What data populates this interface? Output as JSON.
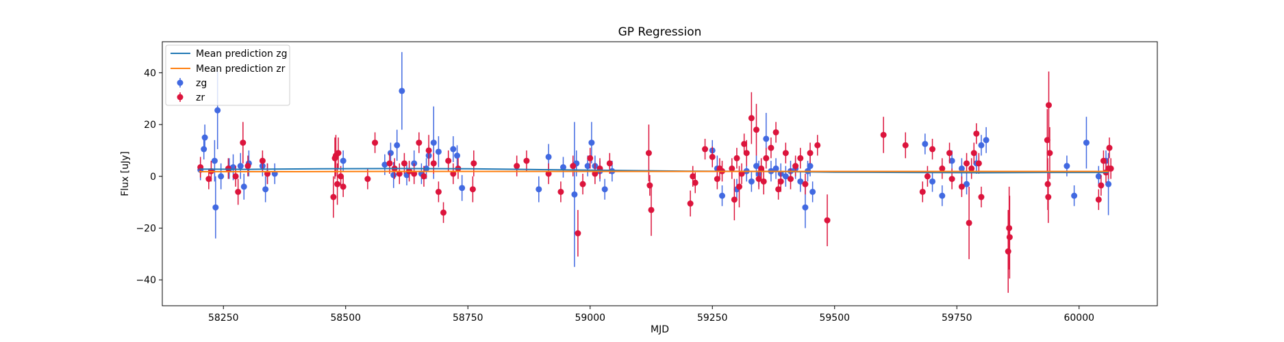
{
  "chart_data": {
    "type": "scatter",
    "title": "GP Regression",
    "xlabel": "MJD",
    "ylabel": "Flux [uJy]",
    "xlim": [
      58125,
      60160
    ],
    "ylim": [
      -50,
      52
    ],
    "xticks": [
      58250,
      58500,
      58750,
      59000,
      59250,
      59500,
      59750,
      60000
    ],
    "yticks": [
      -40,
      -20,
      0,
      20,
      40
    ],
    "grid": false,
    "legend_position": "upper-left",
    "series": [
      {
        "name": "Mean prediction zg",
        "kind": "line",
        "color": "#1f77b4",
        "x": [
          58200,
          58300,
          58450,
          58600,
          58750,
          58900,
          59050,
          59200,
          59350,
          59500,
          59650,
          59800,
          59950,
          60060
        ],
        "y": [
          2.8,
          2.7,
          2.9,
          3.0,
          2.9,
          2.6,
          2.3,
          2.0,
          1.9,
          1.6,
          1.5,
          1.4,
          1.5,
          1.5
        ]
      },
      {
        "name": "Mean prediction zr",
        "kind": "line",
        "color": "#ff7f0e",
        "x": [
          58200,
          58400,
          58600,
          58800,
          59000,
          59200,
          59400,
          59600,
          59800,
          60000,
          60060
        ],
        "y": [
          1.8,
          1.8,
          1.9,
          1.9,
          1.9,
          1.9,
          1.9,
          1.9,
          1.9,
          1.9,
          1.9
        ]
      },
      {
        "name": "zg",
        "kind": "errorbar",
        "color": "#4169e1",
        "x": [
          58203,
          58210,
          58212,
          58232,
          58234,
          58238,
          58245,
          58262,
          58270,
          58285,
          58292,
          58302,
          58330,
          58336,
          58340,
          58355,
          58495,
          58580,
          58592,
          58598,
          58605,
          58615,
          58625,
          58640,
          58655,
          58665,
          58670,
          58680,
          58690,
          58720,
          58728,
          58738,
          58895,
          58915,
          58945,
          58968,
          58972,
          58995,
          59003,
          59010,
          59020,
          59030,
          59045,
          59250,
          59260,
          59270,
          59300,
          59320,
          59330,
          59340,
          59345,
          59360,
          59370,
          59380,
          59390,
          59400,
          59410,
          59420,
          59430,
          59440,
          59445,
          59450,
          59455,
          59685,
          59700,
          59720,
          59740,
          59760,
          59770,
          59790,
          59800,
          59810,
          59975,
          59990,
          60015,
          60040,
          60055,
          60060
        ],
        "y": [
          2.5,
          10.5,
          15,
          6,
          -12,
          25.5,
          0,
          3,
          3.5,
          4,
          -4,
          5,
          4,
          -5,
          1,
          1,
          6,
          4.5,
          9,
          0.5,
          12,
          33,
          0.5,
          5,
          1,
          3,
          8,
          13,
          9.5,
          10.5,
          8,
          -4.5,
          -5,
          7.5,
          3.5,
          -7,
          5,
          4,
          13,
          4,
          2,
          -5,
          2,
          10,
          3,
          -7.5,
          -5,
          2,
          -2,
          4,
          1,
          14.5,
          2,
          3,
          1,
          0,
          2,
          3,
          -2,
          -12,
          2,
          4,
          -6,
          12.5,
          -2,
          -7.5,
          6,
          3,
          -3,
          5,
          12,
          14,
          4,
          -7.5,
          13,
          0,
          6,
          -3
        ],
        "err": [
          4,
          4,
          5,
          8,
          12,
          15,
          5,
          4,
          5,
          5,
          5,
          5,
          4,
          5,
          4,
          4,
          4,
          4,
          4,
          5,
          6,
          15,
          4,
          5,
          4,
          4,
          4,
          14,
          6,
          5,
          4,
          5,
          5,
          5,
          4,
          28,
          5,
          4,
          8,
          4,
          4,
          4,
          4,
          4,
          5,
          4,
          4,
          4,
          4,
          4,
          5,
          10,
          4,
          4,
          4,
          4,
          4,
          4,
          4,
          8,
          4,
          4,
          4,
          4,
          4,
          4,
          4,
          4,
          4,
          4,
          4,
          5,
          4,
          4,
          10,
          4,
          4,
          12
        ]
      },
      {
        "name": "zr",
        "kind": "errorbar",
        "color": "#dc143c",
        "x": [
          58203,
          58220,
          58225,
          58260,
          58275,
          58280,
          58290,
          58300,
          58330,
          58340,
          58475,
          58478,
          58480,
          58483,
          58485,
          58490,
          58495,
          58545,
          58560,
          58590,
          58600,
          58610,
          58620,
          58630,
          58640,
          58650,
          58660,
          58670,
          58680,
          58690,
          58700,
          58710,
          58720,
          58730,
          58760,
          58762,
          58850,
          58870,
          58915,
          58940,
          58965,
          58975,
          58985,
          59000,
          59010,
          59020,
          59040,
          59120,
          59122,
          59125,
          59205,
          59210,
          59215,
          59235,
          59250,
          59260,
          59265,
          59270,
          59290,
          59295,
          59300,
          59305,
          59310,
          59315,
          59320,
          59330,
          59340,
          59345,
          59350,
          59355,
          59360,
          59370,
          59380,
          59385,
          59390,
          59400,
          59410,
          59420,
          59430,
          59440,
          59450,
          59465,
          59485,
          59600,
          59645,
          59680,
          59690,
          59700,
          59720,
          59735,
          59740,
          59760,
          59770,
          59775,
          59780,
          59785,
          59790,
          59795,
          59800,
          59855,
          59857,
          59858,
          59935,
          59936,
          59937,
          59938,
          59940,
          60040,
          60045,
          60050,
          60055,
          60060,
          60062,
          60065
        ],
        "y": [
          3.5,
          -1,
          2,
          3,
          0,
          -6,
          13,
          4,
          6,
          1,
          -8,
          7,
          8,
          -3,
          9,
          0,
          -4,
          -1,
          13,
          5,
          3,
          1,
          5,
          2,
          1,
          13,
          0,
          10,
          5,
          -6,
          -14,
          6,
          1,
          3,
          -5,
          5,
          4,
          6,
          1,
          -6,
          4,
          -22,
          -3,
          7,
          1,
          3,
          5,
          9,
          -3.5,
          -13,
          -10.5,
          0,
          -2.5,
          10.5,
          7.5,
          -1,
          3,
          2,
          3,
          -9,
          7,
          -4,
          1,
          12.5,
          9,
          22.5,
          18,
          -1,
          3,
          -2,
          7,
          11,
          17,
          -5,
          -2,
          9,
          -1,
          4,
          7,
          -3,
          9,
          12,
          -17,
          16,
          12,
          -6,
          0,
          10.5,
          3,
          9,
          -1,
          -4,
          5,
          -18,
          3,
          9,
          16.5,
          5,
          -8,
          -29,
          -20,
          -23.5,
          14,
          -3,
          -8,
          27.5,
          9,
          -9,
          -3.5,
          6,
          1.5,
          3,
          11,
          3
        ],
        "err": [
          4,
          4,
          4,
          4,
          4,
          5,
          8,
          4,
          4,
          4,
          8,
          8,
          8,
          8,
          6,
          4,
          4,
          4,
          4,
          4,
          4,
          4,
          4,
          4,
          4,
          4,
          4,
          6,
          4,
          4,
          4,
          4,
          4,
          4,
          5,
          5,
          4,
          4,
          4,
          4,
          4,
          9,
          4,
          4,
          4,
          4,
          4,
          11,
          4,
          10,
          5,
          4,
          4,
          4,
          4,
          4,
          4,
          4,
          4,
          8,
          4,
          8,
          4,
          4,
          5,
          10,
          10,
          4,
          4,
          5,
          4,
          4,
          4,
          4,
          4,
          4,
          4,
          4,
          4,
          4,
          4,
          4,
          10,
          7,
          5,
          4,
          4,
          4,
          4,
          4,
          4,
          4,
          4,
          14,
          4,
          4,
          4,
          4,
          4,
          16,
          16,
          16,
          12,
          10,
          10,
          13,
          10,
          4,
          4,
          4,
          4,
          4,
          4,
          4
        ]
      }
    ]
  }
}
